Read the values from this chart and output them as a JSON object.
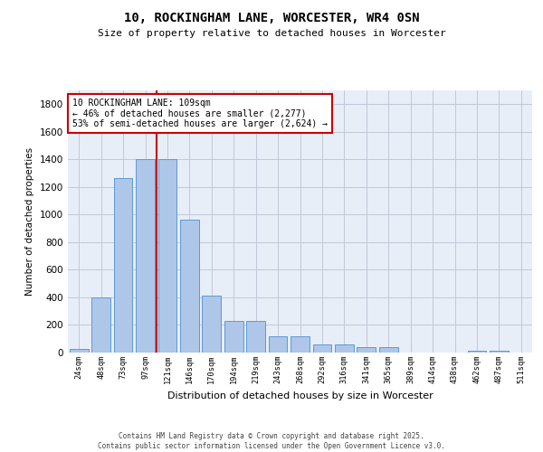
{
  "title": "10, ROCKINGHAM LANE, WORCESTER, WR4 0SN",
  "subtitle": "Size of property relative to detached houses in Worcester",
  "xlabel": "Distribution of detached houses by size in Worcester",
  "ylabel": "Number of detached properties",
  "categories": [
    "24sqm",
    "48sqm",
    "73sqm",
    "97sqm",
    "121sqm",
    "146sqm",
    "170sqm",
    "194sqm",
    "219sqm",
    "243sqm",
    "268sqm",
    "292sqm",
    "316sqm",
    "341sqm",
    "365sqm",
    "389sqm",
    "414sqm",
    "438sqm",
    "462sqm",
    "487sqm",
    "511sqm"
  ],
  "values": [
    25,
    400,
    1265,
    1400,
    1400,
    960,
    415,
    230,
    230,
    120,
    120,
    60,
    60,
    40,
    40,
    0,
    0,
    0,
    15,
    10,
    0
  ],
  "bar_color": "#aec6e8",
  "bar_edge_color": "#5b9bd5",
  "background_color": "#e8eef8",
  "grid_color": "#c0c8d8",
  "vline_color": "#cc0000",
  "vline_x_index": 3.5,
  "annotation_text": "10 ROCKINGHAM LANE: 109sqm\n← 46% of detached houses are smaller (2,277)\n53% of semi-detached houses are larger (2,624) →",
  "annotation_box_color": "#ffffff",
  "annotation_box_edge": "#cc0000",
  "ylim": [
    0,
    1900
  ],
  "yticks": [
    0,
    200,
    400,
    600,
    800,
    1000,
    1200,
    1400,
    1600,
    1800
  ],
  "footer": "Contains HM Land Registry data © Crown copyright and database right 2025.\nContains public sector information licensed under the Open Government Licence v3.0."
}
